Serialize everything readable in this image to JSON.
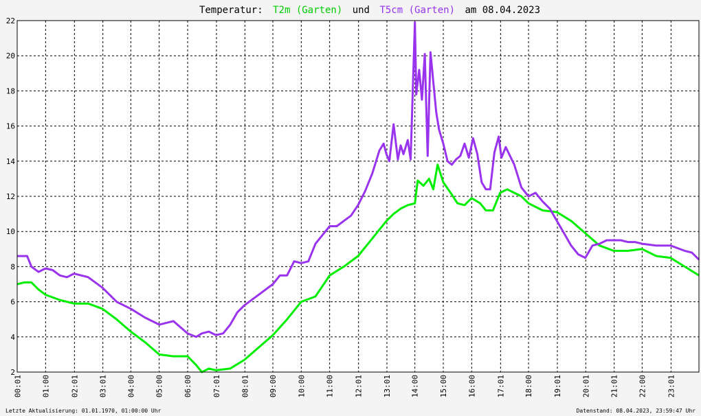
{
  "header": {
    "prefix": "Temperatur:",
    "series1_label": "T2m (Garten)",
    "connector": "und",
    "series2_label": "T5cm (Garten)",
    "suffix": "am 08.04.2023"
  },
  "footer": {
    "left": "Letzte Aktualisierung: 01.01.1970, 01:00:00 Uhr",
    "right": "Datenstand: 08.04.2023, 23:59:47 Uhr"
  },
  "chart_data": {
    "type": "line",
    "title": "Temperatur: T2m (Garten) und T5cm (Garten) am 08.04.2023",
    "xlabel": "",
    "ylabel": "",
    "xlim": [
      0,
      24
    ],
    "ylim": [
      2,
      22
    ],
    "grid": true,
    "yticks": [
      2,
      4,
      6,
      8,
      10,
      12,
      14,
      16,
      18,
      20,
      22
    ],
    "xtick_hours": [
      0.0167,
      1,
      2.0167,
      3.0167,
      4,
      5,
      6,
      7.0167,
      8.0167,
      9,
      10,
      11,
      12.0167,
      13.0167,
      14,
      15,
      16,
      17.0167,
      18,
      19.0167,
      20.0167,
      21.0167,
      22,
      23.0167
    ],
    "xtick_labels": [
      "00:01",
      "01:00",
      "02:01",
      "03:01",
      "04:00",
      "05:00",
      "06:00",
      "07:01",
      "08:01",
      "09:00",
      "10:00",
      "11:00",
      "12:01",
      "13:01",
      "14:00",
      "15:00",
      "16:00",
      "17:01",
      "18:00",
      "19:01",
      "20:01",
      "21:01",
      "22:00",
      "23:01"
    ],
    "colors": {
      "T2m (Garten)": "#00ee00",
      "T5cm (Garten)": "#9933ee",
      "grid": "#000000",
      "background": "#ffffff"
    },
    "series": [
      {
        "name": "T2m (Garten)",
        "x": [
          0,
          0.25,
          0.5,
          0.75,
          1,
          1.5,
          2,
          2.5,
          3,
          3.5,
          4,
          4.5,
          5,
          5.5,
          6,
          6.3,
          6.5,
          6.75,
          7,
          7.5,
          8,
          8.5,
          9,
          9.5,
          10,
          10.5,
          11,
          11.5,
          12,
          12.5,
          13,
          13.25,
          13.5,
          13.75,
          14,
          14.1,
          14.3,
          14.5,
          14.65,
          14.8,
          15,
          15.3,
          15.5,
          15.75,
          16,
          16.3,
          16.5,
          16.75,
          17,
          17.25,
          17.5,
          17.75,
          18,
          18.5,
          19,
          19.5,
          20,
          20.5,
          21,
          21.5,
          22,
          22.5,
          23,
          23.5,
          24
        ],
        "y": [
          7.0,
          7.1,
          7.1,
          6.7,
          6.4,
          6.1,
          5.9,
          5.9,
          5.6,
          5.0,
          4.3,
          3.7,
          3.0,
          2.9,
          2.9,
          2.4,
          2.0,
          2.2,
          2.1,
          2.2,
          2.7,
          3.4,
          4.1,
          5.0,
          6.0,
          6.3,
          7.5,
          8.0,
          8.6,
          9.6,
          10.6,
          11.0,
          11.3,
          11.5,
          11.6,
          12.9,
          12.6,
          13.0,
          12.4,
          13.8,
          12.8,
          12.1,
          11.6,
          11.5,
          11.9,
          11.6,
          11.2,
          11.2,
          12.2,
          12.4,
          12.2,
          12.0,
          11.6,
          11.2,
          11.1,
          10.6,
          9.9,
          9.2,
          8.9,
          8.9,
          9.0,
          8.6,
          8.5,
          8.0,
          7.5
        ]
      },
      {
        "name": "T5cm (Garten)",
        "x": [
          0,
          0.35,
          0.5,
          0.75,
          1,
          1.25,
          1.5,
          1.75,
          2,
          2.5,
          3,
          3.5,
          4,
          4.5,
          5,
          5.5,
          6,
          6.3,
          6.5,
          6.75,
          7,
          7.25,
          7.5,
          7.75,
          8,
          8.5,
          9,
          9.25,
          9.5,
          9.75,
          10,
          10.25,
          10.5,
          10.75,
          11,
          11.25,
          11.5,
          11.75,
          12,
          12.25,
          12.5,
          12.75,
          12.9,
          13,
          13.1,
          13.25,
          13.4,
          13.5,
          13.6,
          13.75,
          13.85,
          14,
          14.05,
          14.15,
          14.25,
          14.35,
          14.45,
          14.55,
          14.65,
          14.75,
          14.85,
          15,
          15.15,
          15.3,
          15.45,
          15.6,
          15.75,
          15.9,
          16.05,
          16.2,
          16.35,
          16.5,
          16.65,
          16.8,
          16.95,
          17.05,
          17.2,
          17.35,
          17.5,
          17.75,
          18,
          18.25,
          18.5,
          18.75,
          19,
          19.25,
          19.5,
          19.75,
          20,
          20.25,
          20.5,
          20.75,
          21,
          21.25,
          21.5,
          21.75,
          22,
          22.5,
          23,
          23.5,
          23.75,
          24
        ],
        "y": [
          8.6,
          8.6,
          8.0,
          7.7,
          7.9,
          7.8,
          7.5,
          7.4,
          7.6,
          7.4,
          6.8,
          6.0,
          5.6,
          5.1,
          4.7,
          4.9,
          4.2,
          4.0,
          4.2,
          4.3,
          4.1,
          4.2,
          4.7,
          5.4,
          5.8,
          6.4,
          7.0,
          7.5,
          7.5,
          8.3,
          8.2,
          8.3,
          9.3,
          9.8,
          10.3,
          10.3,
          10.6,
          10.9,
          11.5,
          12.3,
          13.3,
          14.6,
          15.0,
          14.4,
          14.0,
          16.1,
          14.1,
          14.9,
          14.4,
          15.2,
          14.1,
          21.9,
          17.8,
          19.2,
          17.5,
          20.1,
          14.3,
          20.2,
          18.5,
          16.8,
          15.8,
          15.0,
          14.0,
          13.8,
          14.1,
          14.3,
          15.0,
          14.2,
          15.3,
          14.4,
          12.8,
          12.4,
          12.4,
          14.5,
          15.4,
          14.2,
          14.8,
          14.3,
          13.8,
          12.5,
          12.0,
          12.2,
          11.7,
          11.3,
          10.6,
          9.9,
          9.2,
          8.7,
          8.5,
          9.2,
          9.3,
          9.5,
          9.5,
          9.5,
          9.4,
          9.4,
          9.3,
          9.2,
          9.2,
          8.9,
          8.8,
          8.4
        ]
      }
    ]
  }
}
